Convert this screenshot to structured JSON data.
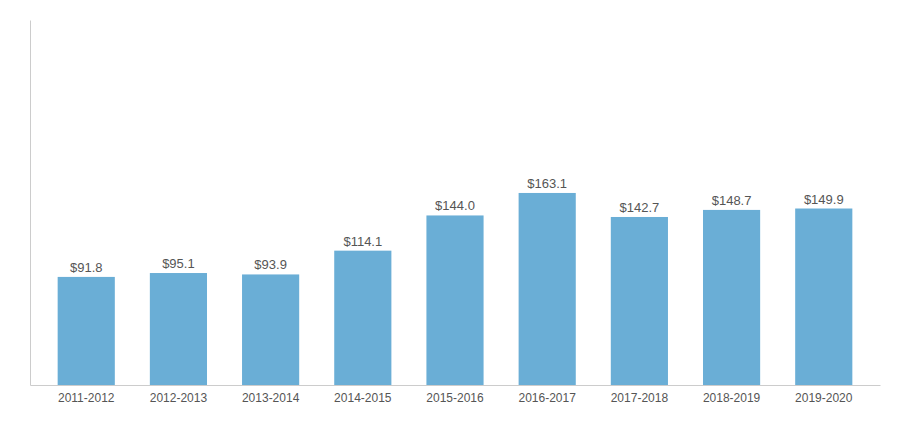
{
  "chart_data": {
    "type": "bar",
    "categories": [
      "2011-2012",
      "2012-2013",
      "2013-2014",
      "2014-2015",
      "2015-2016",
      "2016-2017",
      "2017-2018",
      "2018-2019",
      "2019-2020"
    ],
    "values": [
      91.8,
      95.1,
      93.9,
      114.1,
      144.0,
      163.1,
      142.7,
      148.7,
      149.9
    ],
    "value_labels": [
      "$91.8",
      "$95.1",
      "$93.9",
      "$114.1",
      "$144.0",
      "$163.1",
      "$142.7",
      "$148.7",
      "$149.9"
    ],
    "color": "#6aaed6",
    "ylim": [
      0,
      310
    ],
    "data_labels": true,
    "tick_labels": "x",
    "grid": false
  }
}
